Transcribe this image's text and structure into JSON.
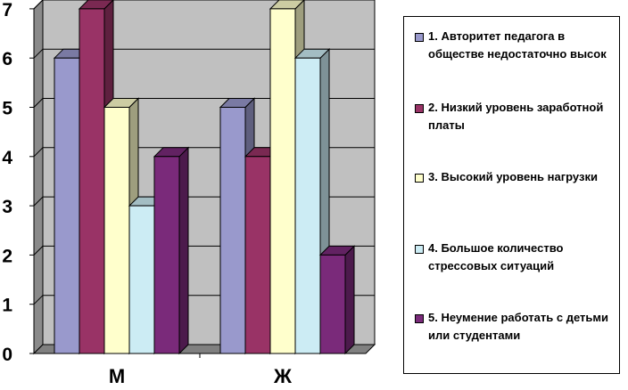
{
  "chart_data": {
    "type": "bar",
    "categories": [
      "М",
      "Ж"
    ],
    "series": [
      {
        "name": "1. Авторитет педагога в обществе недостаточно высок",
        "values": [
          6,
          5
        ],
        "color": "#9999cc"
      },
      {
        "name": "2. Низкий уровень заработной платы",
        "values": [
          7,
          4
        ],
        "color": "#993366"
      },
      {
        "name": "3. Высокий уровень нагрузки",
        "values": [
          5,
          7
        ],
        "color": "#ffffcc"
      },
      {
        "name": "4. Большое количество стрессовых ситуаций",
        "values": [
          3,
          6
        ],
        "color": "#ccecf4"
      },
      {
        "name": "5. Неумение работать с детьми или студентами",
        "values": [
          4,
          2
        ],
        "color": "#7a2a7a"
      }
    ],
    "y_ticks": [
      "0",
      "1",
      "2",
      "3",
      "4",
      "5",
      "6",
      "7"
    ],
    "ylim": [
      0,
      7
    ],
    "grid": true,
    "legend_position": "right",
    "title": "",
    "xlabel": "",
    "ylabel": ""
  }
}
